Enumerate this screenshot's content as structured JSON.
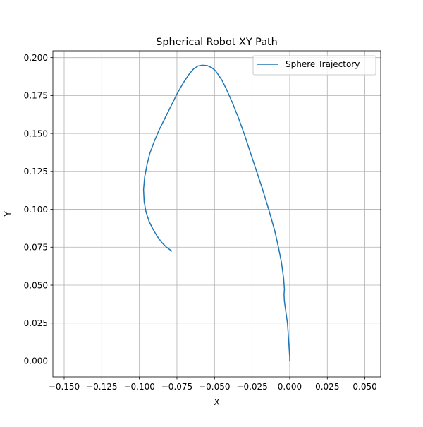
{
  "chart_data": {
    "type": "line",
    "title": "Spherical Robot XY Path",
    "xlabel": "X",
    "ylabel": "Y",
    "xlim": [
      -0.1575,
      0.0605
    ],
    "ylim": [
      -0.0105,
      0.2045
    ],
    "xticks": [
      -0.15,
      -0.125,
      -0.1,
      -0.075,
      -0.05,
      -0.025,
      0.0,
      0.025,
      0.05
    ],
    "xtick_labels": [
      "−0.150",
      "−0.125",
      "−0.100",
      "−0.075",
      "−0.050",
      "−0.025",
      "0.000",
      "0.025",
      "0.050"
    ],
    "yticks": [
      0.0,
      0.025,
      0.05,
      0.075,
      0.1,
      0.125,
      0.15,
      0.175,
      0.2
    ],
    "ytick_labels": [
      "0.000",
      "0.025",
      "0.050",
      "0.075",
      "0.100",
      "0.125",
      "0.150",
      "0.175",
      "0.200"
    ],
    "grid": true,
    "legend_position": "upper right",
    "series": [
      {
        "name": "Sphere Trajectory",
        "color": "#1f77b4",
        "points": [
          [
            0.0,
            0.0
          ],
          [
            0.0,
            0.0025
          ],
          [
            -0.0005,
            0.01
          ],
          [
            -0.001,
            0.018
          ],
          [
            -0.0015,
            0.025
          ],
          [
            -0.0025,
            0.032
          ],
          [
            -0.0035,
            0.039
          ],
          [
            -0.0038,
            0.044
          ],
          [
            -0.0035,
            0.047
          ],
          [
            -0.004,
            0.054
          ],
          [
            -0.0055,
            0.065
          ],
          [
            -0.0075,
            0.075
          ],
          [
            -0.01,
            0.086
          ],
          [
            -0.014,
            0.1
          ],
          [
            -0.018,
            0.113
          ],
          [
            -0.022,
            0.125
          ],
          [
            -0.026,
            0.137
          ],
          [
            -0.03,
            0.149
          ],
          [
            -0.034,
            0.16
          ],
          [
            -0.038,
            0.17
          ],
          [
            -0.042,
            0.179
          ],
          [
            -0.045,
            0.185
          ],
          [
            -0.047,
            0.188
          ],
          [
            -0.0495,
            0.1915
          ],
          [
            -0.052,
            0.1935
          ],
          [
            -0.055,
            0.1948
          ],
          [
            -0.058,
            0.195
          ],
          [
            -0.061,
            0.1945
          ],
          [
            -0.064,
            0.1925
          ],
          [
            -0.067,
            0.189
          ],
          [
            -0.071,
            0.183
          ],
          [
            -0.075,
            0.176
          ],
          [
            -0.079,
            0.168
          ],
          [
            -0.083,
            0.16
          ],
          [
            -0.087,
            0.152
          ],
          [
            -0.09,
            0.145
          ],
          [
            -0.093,
            0.137
          ],
          [
            -0.095,
            0.129
          ],
          [
            -0.0965,
            0.121
          ],
          [
            -0.0972,
            0.113
          ],
          [
            -0.0968,
            0.105
          ],
          [
            -0.0955,
            0.098
          ],
          [
            -0.0935,
            0.092
          ],
          [
            -0.091,
            0.087
          ],
          [
            -0.088,
            0.082
          ],
          [
            -0.085,
            0.078
          ],
          [
            -0.082,
            0.075
          ],
          [
            -0.0785,
            0.0725
          ]
        ]
      }
    ]
  }
}
